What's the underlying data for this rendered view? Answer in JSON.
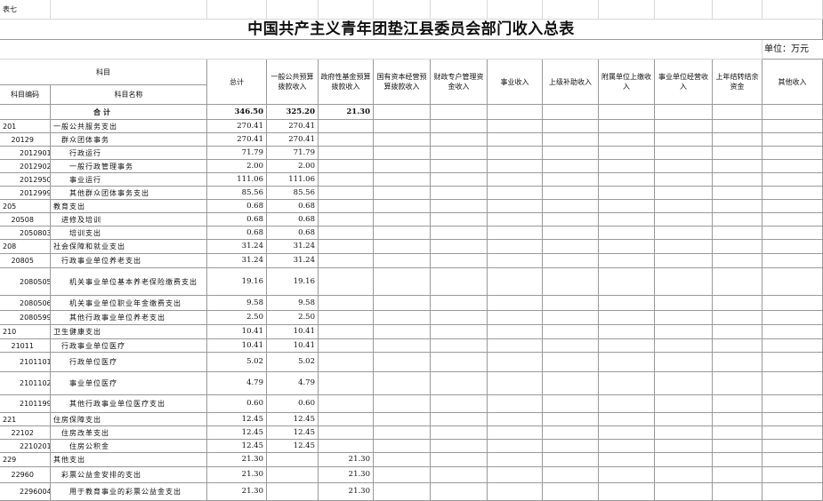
{
  "header": {
    "sheet_label": "表七",
    "title": "中国共产主义青年团垫江县委员会部门收入总表",
    "unit": "单位：万元"
  },
  "table": {
    "subject_group": "科目",
    "subject_code": "科目编码",
    "subject_name": "科目名称",
    "columns": [
      "总计",
      "一般公共预算拨款收入",
      "政府性基金预算拨款收入",
      "国有资本经营预算拨款收入",
      "财政专户管理资金收入",
      "事业收入",
      "上级补助收入",
      "附属单位上缴收入",
      "事业单位经营收入",
      "上年结转结余资金",
      "其他收入"
    ],
    "rows": [
      {
        "name": "合计",
        "total": "346.50",
        "general_budget": "325.20",
        "gov_fund": "21.30"
      },
      {
        "code": "201",
        "name": "一般公共服务支出",
        "total": "270.41",
        "general_budget": "270.41"
      },
      {
        "code": "20129",
        "name": "群众团体事务",
        "total": "270.41",
        "general_budget": "270.41"
      },
      {
        "code": "2012901",
        "name": "行政运行",
        "total": "71.79",
        "general_budget": "71.79"
      },
      {
        "code": "2012902",
        "name": "一般行政管理事务",
        "total": "2.00",
        "general_budget": "2.00"
      },
      {
        "code": "2012950",
        "name": "事业运行",
        "total": "111.06",
        "general_budget": "111.06"
      },
      {
        "code": "2012999",
        "name": "其他群众团体事务支出",
        "total": "85.56",
        "general_budget": "85.56"
      },
      {
        "code": "205",
        "name": "教育支出",
        "total": "0.68",
        "general_budget": "0.68"
      },
      {
        "code": "20508",
        "name": "进修及培训",
        "total": "0.68",
        "general_budget": "0.68"
      },
      {
        "code": "2050803",
        "name": "培训支出",
        "total": "0.68",
        "general_budget": "0.68"
      },
      {
        "code": "208",
        "name": "社会保障和就业支出",
        "total": "31.24",
        "general_budget": "31.24"
      },
      {
        "code": "20805",
        "name": "行政事业单位养老支出",
        "total": "31.24",
        "general_budget": "31.24"
      },
      {
        "code": "2080505",
        "name": "机关事业单位基本养老保险缴费支出",
        "total": "19.16",
        "general_budget": "19.16"
      },
      {
        "code": "2080506",
        "name": "机关事业单位职业年金缴费支出",
        "total": "9.58",
        "general_budget": "9.58"
      },
      {
        "code": "2080599",
        "name": "其他行政事业单位养老支出",
        "total": "2.50",
        "general_budget": "2.50"
      },
      {
        "code": "210",
        "name": "卫生健康支出",
        "total": "10.41",
        "general_budget": "10.41"
      },
      {
        "code": "21011",
        "name": "行政事业单位医疗",
        "total": "10.41",
        "general_budget": "10.41"
      },
      {
        "code": "2101101",
        "name": "行政单位医疗",
        "total": "5.02",
        "general_budget": "5.02"
      },
      {
        "code": "2101102",
        "name": "事业单位医疗",
        "total": "4.79",
        "general_budget": "4.79"
      },
      {
        "code": "2101199",
        "name": "其他行政事业单位医疗支出",
        "total": "0.60",
        "general_budget": "0.60"
      },
      {
        "code": "221",
        "name": "住房保障支出",
        "total": "12.45",
        "general_budget": "12.45"
      },
      {
        "code": "22102",
        "name": "住房改革支出",
        "total": "12.45",
        "general_budget": "12.45"
      },
      {
        "code": "2210201",
        "name": "住房公积金",
        "total": "12.45",
        "general_budget": "12.45"
      },
      {
        "code": "229",
        "name": "其他支出",
        "total": "21.30",
        "gov_fund": "21.30"
      },
      {
        "code": "22960",
        "name": "彩票公益金安排的支出",
        "total": "21.30",
        "gov_fund": "21.30"
      },
      {
        "code": "2296004",
        "name": "用于教育事业的彩票公益金支出",
        "total": "21.30",
        "gov_fund": "21.30"
      }
    ]
  }
}
